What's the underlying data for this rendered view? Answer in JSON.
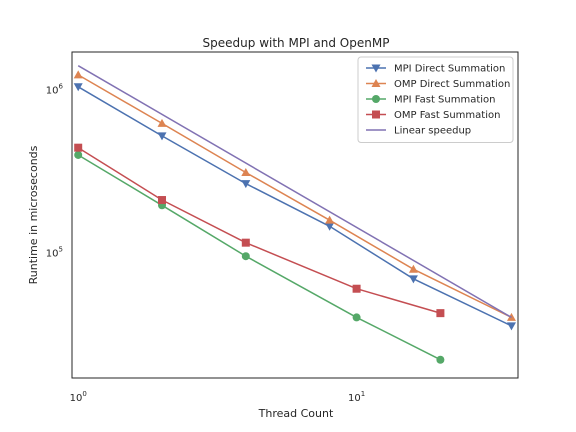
{
  "chart_data": {
    "type": "line",
    "title": "Speedup with MPI and OpenMP",
    "xlabel": "Thread Count",
    "ylabel": "Runtime in microseconds",
    "xscale": "log",
    "yscale": "log",
    "xlim": [
      0.95,
      38
    ],
    "ylim": [
      17000,
      1700000
    ],
    "xticks": [
      {
        "value": 1,
        "base": "10",
        "exp": "0"
      },
      {
        "value": 10,
        "base": "10",
        "exp": "1"
      }
    ],
    "yticks": [
      {
        "value": 100000,
        "base": "10",
        "exp": "5"
      },
      {
        "value": 1000000,
        "base": "10",
        "exp": "6"
      }
    ],
    "grid": false,
    "legend_position": "top-right",
    "series": [
      {
        "name": "MPI Direct Summation",
        "color": "#4c72b0",
        "marker": "triangle-down",
        "x": [
          1,
          2,
          4,
          8,
          16,
          36
        ],
        "y": [
          1040000,
          520000,
          265000,
          145000,
          69000,
          35500
        ]
      },
      {
        "name": "OMP Direct Summation",
        "color": "#dd8452",
        "marker": "triangle-up",
        "x": [
          1,
          2,
          4,
          8,
          16,
          36
        ],
        "y": [
          1230000,
          620000,
          310000,
          158000,
          79000,
          40000
        ]
      },
      {
        "name": "MPI Fast Summation",
        "color": "#55a868",
        "marker": "circle",
        "x": [
          1,
          2,
          4,
          10,
          20
        ],
        "y": [
          397000,
          195000,
          95000,
          40000,
          22000
        ]
      },
      {
        "name": "OMP Fast Summation",
        "color": "#c44e52",
        "marker": "square",
        "x": [
          1,
          2,
          4,
          10,
          20
        ],
        "y": [
          440000,
          210000,
          115000,
          60000,
          42500
        ]
      },
      {
        "name": "Linear speedup",
        "color": "#8172b3",
        "marker": "none",
        "x": [
          1,
          36
        ],
        "y": [
          1400000,
          40000
        ]
      }
    ]
  }
}
